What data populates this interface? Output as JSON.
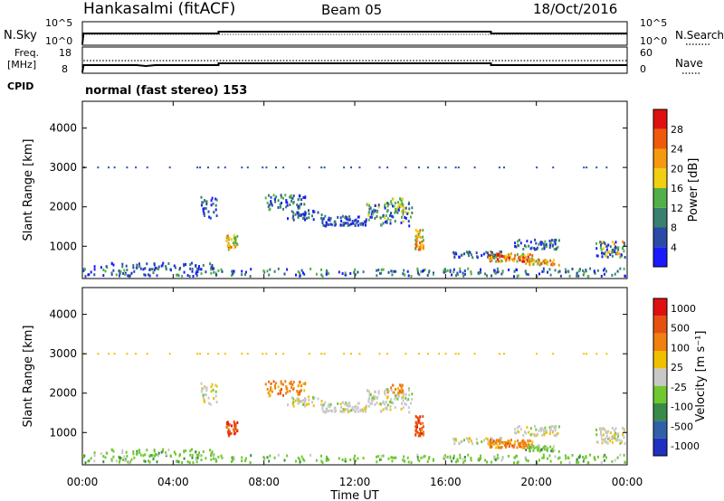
{
  "header": {
    "station": "Hankasalmi (fitACF)",
    "beam": "Beam 05",
    "date": "18/Oct/2016"
  },
  "summary": {
    "nsky_label": "N.Sky",
    "nsky_ticks": [
      "10^5",
      "10^0"
    ],
    "nsearch_label": "N.Search",
    "nsearch_ticks": [
      "10^5",
      "10^0"
    ],
    "freq_label_1": "Freq.",
    "freq_label_2": "[MHz]",
    "freq_ticks": [
      "18",
      "8"
    ],
    "nave_label": "Nave",
    "nave_ticks": [
      "60",
      "0"
    ],
    "cpid_label": "CPID",
    "cpid_text": "normal (fast stereo) 153"
  },
  "chart_data": [
    {
      "type": "heatmap",
      "name": "power",
      "ylabel": "Slant Range [km]",
      "yticks": [
        "1000",
        "2000",
        "3000",
        "4000"
      ],
      "colorbar_label": "Power [dB]",
      "colorbar_ticks": [
        "4",
        "8",
        "12",
        "16",
        "20",
        "24",
        "28"
      ],
      "colorbar_colors": [
        "#1a1aff",
        "#2a4aa8",
        "#3a8070",
        "#52b04a",
        "#f0d010",
        "#f59a10",
        "#ee5a0a",
        "#e01010"
      ]
    },
    {
      "type": "heatmap",
      "name": "velocity",
      "ylabel": "Slant Range [km]",
      "yticks": [
        "1000",
        "2000",
        "3000",
        "4000"
      ],
      "colorbar_label": "Velocity [m s⁻¹]",
      "colorbar_ticks": [
        "1000",
        "500",
        "100",
        "25",
        "-25",
        "-100",
        "-500",
        "-1000"
      ],
      "colorbar_colors": [
        "#2030c0",
        "#3060a8",
        "#3a8a4a",
        "#70c830",
        "#c8c8c8",
        "#f0c000",
        "#f08010",
        "#e85010",
        "#e01010"
      ]
    }
  ],
  "xaxis": {
    "label": "Time UT",
    "ticks": [
      "00:00",
      "04:00",
      "08:00",
      "12:00",
      "16:00",
      "20:00",
      "00:00"
    ]
  }
}
